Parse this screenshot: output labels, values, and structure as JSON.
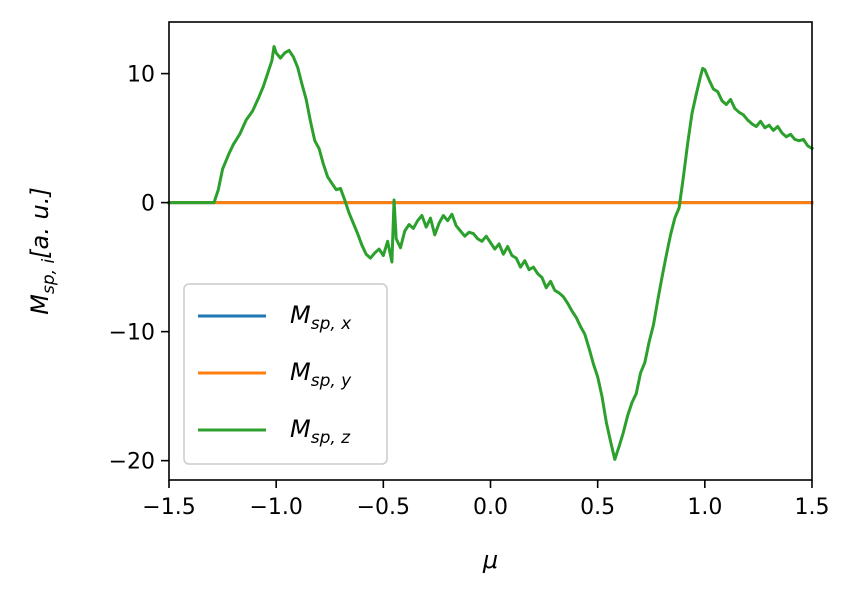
{
  "chart_data": {
    "type": "line",
    "title": "",
    "xlabel": "μ",
    "ylabel_main": "M",
    "ylabel_sub": "sp, i",
    "ylabel_tail": "[a. u.]",
    "xlim": [
      -1.5,
      1.5
    ],
    "ylim": [
      -21.5,
      14.0
    ],
    "xticks": [
      -1.5,
      -1.0,
      -0.5,
      0.0,
      0.5,
      1.0,
      1.5
    ],
    "xtick_labels": [
      "−1.5",
      "−1.0",
      "−0.5",
      "0.0",
      "0.5",
      "1.0",
      "1.5"
    ],
    "yticks": [
      10,
      0,
      -10,
      -20
    ],
    "ytick_labels": [
      "10",
      "0",
      "−10",
      "−20"
    ],
    "grid": false,
    "legend_position": "lower-left",
    "series": [
      {
        "name_main": "M",
        "name_sub": "sp, x",
        "color": "#1f77b4",
        "points": [
          [
            -1.5,
            0
          ],
          [
            1.5,
            0
          ]
        ]
      },
      {
        "name_main": "M",
        "name_sub": "sp, y",
        "color": "#ff7f0e",
        "points": [
          [
            -1.5,
            0
          ],
          [
            1.5,
            0
          ]
        ]
      },
      {
        "name_main": "M",
        "name_sub": "sp, z",
        "color": "#2ca02c",
        "points": [
          [
            -1.5,
            0
          ],
          [
            -1.29,
            0
          ],
          [
            -1.27,
            1.0
          ],
          [
            -1.25,
            2.6
          ],
          [
            -1.22,
            3.8
          ],
          [
            -1.2,
            4.5
          ],
          [
            -1.17,
            5.3
          ],
          [
            -1.14,
            6.4
          ],
          [
            -1.11,
            7.1
          ],
          [
            -1.08,
            8.2
          ],
          [
            -1.06,
            9.0
          ],
          [
            -1.04,
            10.0
          ],
          [
            -1.02,
            11.0
          ],
          [
            -1.01,
            12.1
          ],
          [
            -1.0,
            11.6
          ],
          [
            -0.98,
            11.2
          ],
          [
            -0.96,
            11.6
          ],
          [
            -0.94,
            11.8
          ],
          [
            -0.92,
            11.3
          ],
          [
            -0.9,
            10.5
          ],
          [
            -0.88,
            9.2
          ],
          [
            -0.86,
            8.0
          ],
          [
            -0.84,
            6.3
          ],
          [
            -0.82,
            4.8
          ],
          [
            -0.8,
            4.2
          ],
          [
            -0.78,
            3.0
          ],
          [
            -0.76,
            2.0
          ],
          [
            -0.74,
            1.5
          ],
          [
            -0.72,
            1.0
          ],
          [
            -0.7,
            1.1
          ],
          [
            -0.68,
            0.2
          ],
          [
            -0.66,
            -0.8
          ],
          [
            -0.64,
            -1.6
          ],
          [
            -0.62,
            -2.4
          ],
          [
            -0.6,
            -3.3
          ],
          [
            -0.58,
            -4.0
          ],
          [
            -0.56,
            -4.3
          ],
          [
            -0.54,
            -3.9
          ],
          [
            -0.52,
            -3.6
          ],
          [
            -0.5,
            -4.1
          ],
          [
            -0.48,
            -3.0
          ],
          [
            -0.46,
            -4.6
          ],
          [
            -0.45,
            0.2
          ],
          [
            -0.44,
            -2.8
          ],
          [
            -0.42,
            -3.5
          ],
          [
            -0.4,
            -2.2
          ],
          [
            -0.38,
            -1.7
          ],
          [
            -0.36,
            -2.0
          ],
          [
            -0.34,
            -1.4
          ],
          [
            -0.32,
            -1.0
          ],
          [
            -0.3,
            -1.9
          ],
          [
            -0.28,
            -1.2
          ],
          [
            -0.26,
            -2.5
          ],
          [
            -0.24,
            -1.6
          ],
          [
            -0.22,
            -1.0
          ],
          [
            -0.2,
            -1.4
          ],
          [
            -0.18,
            -0.9
          ],
          [
            -0.16,
            -1.8
          ],
          [
            -0.14,
            -2.2
          ],
          [
            -0.12,
            -2.6
          ],
          [
            -0.1,
            -2.3
          ],
          [
            -0.08,
            -2.4
          ],
          [
            -0.06,
            -2.8
          ],
          [
            -0.04,
            -3.0
          ],
          [
            -0.02,
            -2.6
          ],
          [
            0.0,
            -3.1
          ],
          [
            0.02,
            -3.6
          ],
          [
            0.04,
            -3.2
          ],
          [
            0.06,
            -4.0
          ],
          [
            0.08,
            -3.4
          ],
          [
            0.1,
            -4.1
          ],
          [
            0.12,
            -4.3
          ],
          [
            0.14,
            -5.0
          ],
          [
            0.16,
            -4.5
          ],
          [
            0.18,
            -5.2
          ],
          [
            0.2,
            -5.0
          ],
          [
            0.22,
            -5.5
          ],
          [
            0.24,
            -5.8
          ],
          [
            0.26,
            -6.6
          ],
          [
            0.28,
            -6.1
          ],
          [
            0.3,
            -6.8
          ],
          [
            0.32,
            -7.0
          ],
          [
            0.34,
            -7.3
          ],
          [
            0.36,
            -7.8
          ],
          [
            0.38,
            -8.4
          ],
          [
            0.4,
            -8.9
          ],
          [
            0.42,
            -9.6
          ],
          [
            0.44,
            -10.2
          ],
          [
            0.46,
            -11.3
          ],
          [
            0.48,
            -12.5
          ],
          [
            0.5,
            -13.5
          ],
          [
            0.52,
            -15.0
          ],
          [
            0.54,
            -17.0
          ],
          [
            0.56,
            -18.5
          ],
          [
            0.58,
            -19.9
          ],
          [
            0.6,
            -18.9
          ],
          [
            0.62,
            -17.8
          ],
          [
            0.64,
            -16.5
          ],
          [
            0.66,
            -15.5
          ],
          [
            0.68,
            -14.8
          ],
          [
            0.7,
            -13.2
          ],
          [
            0.72,
            -12.4
          ],
          [
            0.74,
            -10.8
          ],
          [
            0.76,
            -9.5
          ],
          [
            0.78,
            -7.6
          ],
          [
            0.8,
            -5.8
          ],
          [
            0.82,
            -4.1
          ],
          [
            0.84,
            -2.5
          ],
          [
            0.86,
            -1.2
          ],
          [
            0.88,
            -0.4
          ],
          [
            0.9,
            2.0
          ],
          [
            0.92,
            4.6
          ],
          [
            0.94,
            6.9
          ],
          [
            0.96,
            8.4
          ],
          [
            0.98,
            9.8
          ],
          [
            0.99,
            10.4
          ],
          [
            1.0,
            10.3
          ],
          [
            1.02,
            9.5
          ],
          [
            1.04,
            8.8
          ],
          [
            1.06,
            8.6
          ],
          [
            1.08,
            7.9
          ],
          [
            1.1,
            7.6
          ],
          [
            1.12,
            8.0
          ],
          [
            1.14,
            7.3
          ],
          [
            1.16,
            7.0
          ],
          [
            1.18,
            6.8
          ],
          [
            1.2,
            6.4
          ],
          [
            1.22,
            6.1
          ],
          [
            1.24,
            5.9
          ],
          [
            1.26,
            6.3
          ],
          [
            1.28,
            5.8
          ],
          [
            1.3,
            6.0
          ],
          [
            1.32,
            5.6
          ],
          [
            1.34,
            5.9
          ],
          [
            1.36,
            5.4
          ],
          [
            1.38,
            5.1
          ],
          [
            1.4,
            5.3
          ],
          [
            1.42,
            4.9
          ],
          [
            1.44,
            4.8
          ],
          [
            1.46,
            4.9
          ],
          [
            1.48,
            4.4
          ],
          [
            1.5,
            4.2
          ]
        ]
      }
    ]
  }
}
